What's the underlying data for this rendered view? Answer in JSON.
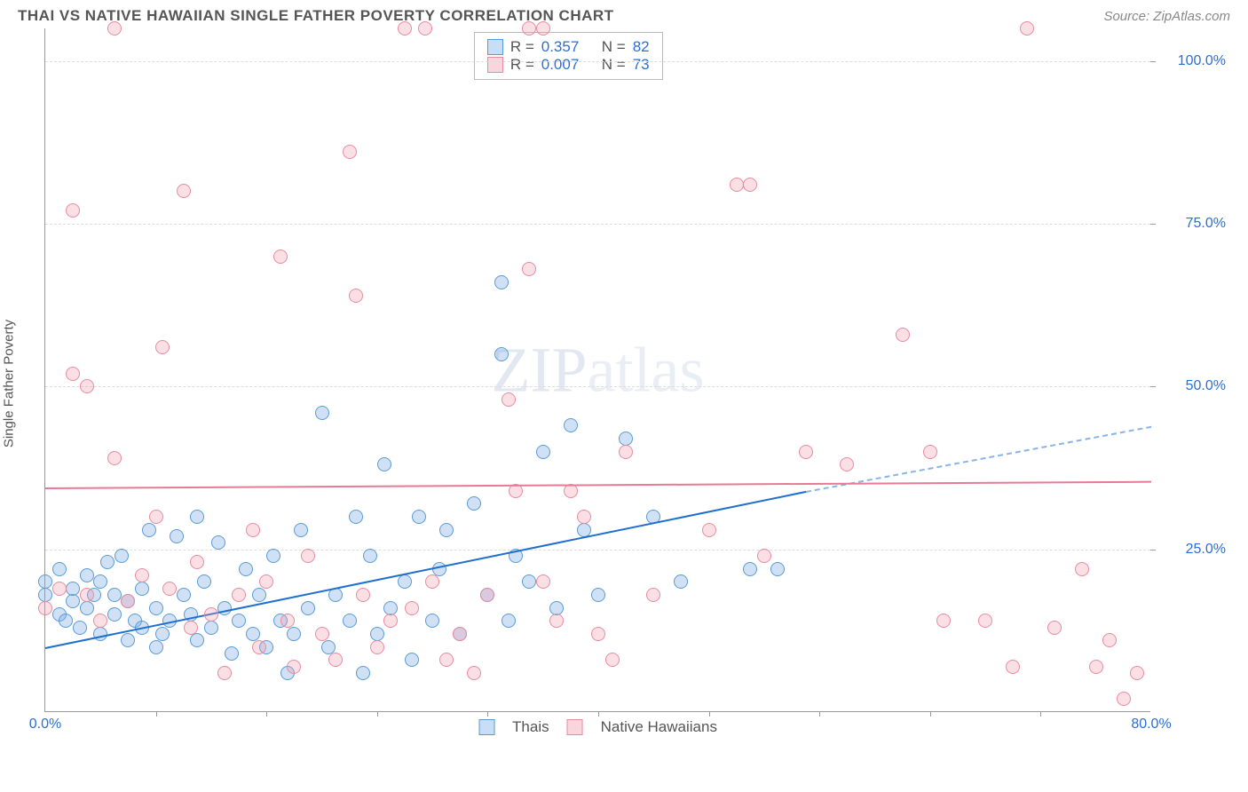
{
  "header": {
    "title": "THAI VS NATIVE HAWAIIAN SINGLE FATHER POVERTY CORRELATION CHART",
    "source": "Source: ZipAtlas.com"
  },
  "ylabel": "Single Father Poverty",
  "watermark": {
    "bold": "ZIP",
    "light": "atlas"
  },
  "axes": {
    "xlim": [
      0,
      80
    ],
    "ylim": [
      0,
      105
    ],
    "xticks_major": [
      0,
      80
    ],
    "xticks_minor": [
      8,
      16,
      24,
      32,
      40,
      48,
      56,
      64,
      72
    ],
    "xtick_labels": {
      "0": "0.0%",
      "80": "80.0%"
    },
    "yticks": [
      25,
      50,
      75,
      100
    ],
    "ytick_labels": {
      "25": "25.0%",
      "50": "50.0%",
      "75": "75.0%",
      "100": "100.0%"
    },
    "grid_color": "#dddddd",
    "axis_color": "#999999"
  },
  "series": [
    {
      "name": "Thais",
      "color_fill": "rgba(120,170,230,0.35)",
      "color_stroke": "#5a9bd5",
      "trend_color": "#1f6fd0",
      "R": "0.357",
      "N": "82",
      "trend": {
        "x1": 0,
        "y1": 10,
        "x2_solid": 55,
        "y2_solid": 34,
        "x2_dash": 80,
        "y2_dash": 44
      },
      "points": [
        [
          0,
          18
        ],
        [
          0,
          20
        ],
        [
          1,
          15
        ],
        [
          1,
          22
        ],
        [
          1.5,
          14
        ],
        [
          2,
          17
        ],
        [
          2,
          19
        ],
        [
          2.5,
          13
        ],
        [
          3,
          16
        ],
        [
          3,
          21
        ],
        [
          3.5,
          18
        ],
        [
          4,
          12
        ],
        [
          4,
          20
        ],
        [
          4.5,
          23
        ],
        [
          5,
          15
        ],
        [
          5,
          18
        ],
        [
          5.5,
          24
        ],
        [
          6,
          11
        ],
        [
          6,
          17
        ],
        [
          6.5,
          14
        ],
        [
          7,
          19
        ],
        [
          7,
          13
        ],
        [
          7.5,
          28
        ],
        [
          8,
          10
        ],
        [
          8,
          16
        ],
        [
          8.5,
          12
        ],
        [
          9,
          14
        ],
        [
          9.5,
          27
        ],
        [
          10,
          18
        ],
        [
          10.5,
          15
        ],
        [
          11,
          30
        ],
        [
          11,
          11
        ],
        [
          11.5,
          20
        ],
        [
          12,
          13
        ],
        [
          12.5,
          26
        ],
        [
          13,
          16
        ],
        [
          13.5,
          9
        ],
        [
          14,
          14
        ],
        [
          14.5,
          22
        ],
        [
          15,
          12
        ],
        [
          15.5,
          18
        ],
        [
          16,
          10
        ],
        [
          16.5,
          24
        ],
        [
          17,
          14
        ],
        [
          17.5,
          6
        ],
        [
          18,
          12
        ],
        [
          18.5,
          28
        ],
        [
          19,
          16
        ],
        [
          20,
          46
        ],
        [
          20.5,
          10
        ],
        [
          21,
          18
        ],
        [
          22,
          14
        ],
        [
          22.5,
          30
        ],
        [
          23,
          6
        ],
        [
          23.5,
          24
        ],
        [
          24,
          12
        ],
        [
          24.5,
          38
        ],
        [
          25,
          16
        ],
        [
          26,
          20
        ],
        [
          26.5,
          8
        ],
        [
          27,
          30
        ],
        [
          28,
          14
        ],
        [
          28.5,
          22
        ],
        [
          29,
          28
        ],
        [
          30,
          12
        ],
        [
          31,
          32
        ],
        [
          32,
          18
        ],
        [
          33,
          55
        ],
        [
          33,
          66
        ],
        [
          33.5,
          14
        ],
        [
          34,
          24
        ],
        [
          35,
          20
        ],
        [
          36,
          40
        ],
        [
          37,
          16
        ],
        [
          38,
          44
        ],
        [
          39,
          28
        ],
        [
          40,
          18
        ],
        [
          42,
          42
        ],
        [
          44,
          30
        ],
        [
          46,
          20
        ],
        [
          51,
          22
        ],
        [
          53,
          22
        ]
      ]
    },
    {
      "name": "Native Hawaiians",
      "color_fill": "rgba(240,150,170,0.30)",
      "color_stroke": "#e88ba0",
      "trend_color": "#e77a95",
      "R": "0.007",
      "N": "73",
      "trend": {
        "x1": 0,
        "y1": 34.5,
        "x2_solid": 80,
        "y2_solid": 35.5,
        "x2_dash": 80,
        "y2_dash": 35.5
      },
      "points": [
        [
          0,
          16
        ],
        [
          1,
          19
        ],
        [
          2,
          52
        ],
        [
          2,
          77
        ],
        [
          3,
          18
        ],
        [
          3,
          50
        ],
        [
          4,
          14
        ],
        [
          5,
          105
        ],
        [
          5,
          39
        ],
        [
          6,
          17
        ],
        [
          7,
          21
        ],
        [
          8,
          30
        ],
        [
          8.5,
          56
        ],
        [
          9,
          19
        ],
        [
          10,
          80
        ],
        [
          10.5,
          13
        ],
        [
          11,
          23
        ],
        [
          12,
          15
        ],
        [
          13,
          6
        ],
        [
          14,
          18
        ],
        [
          15,
          28
        ],
        [
          15.5,
          10
        ],
        [
          16,
          20
        ],
        [
          17,
          70
        ],
        [
          17.5,
          14
        ],
        [
          18,
          7
        ],
        [
          19,
          24
        ],
        [
          20,
          12
        ],
        [
          21,
          8
        ],
        [
          22,
          86
        ],
        [
          22.5,
          64
        ],
        [
          23,
          18
        ],
        [
          24,
          10
        ],
        [
          25,
          14
        ],
        [
          26,
          105
        ],
        [
          26.5,
          16
        ],
        [
          27.5,
          105
        ],
        [
          28,
          20
        ],
        [
          29,
          8
        ],
        [
          30,
          12
        ],
        [
          31,
          6
        ],
        [
          32,
          18
        ],
        [
          33.5,
          48
        ],
        [
          34,
          34
        ],
        [
          35,
          68
        ],
        [
          35,
          105
        ],
        [
          36,
          105
        ],
        [
          36,
          20
        ],
        [
          37,
          14
        ],
        [
          38,
          34
        ],
        [
          39,
          30
        ],
        [
          40,
          12
        ],
        [
          41,
          8
        ],
        [
          42,
          40
        ],
        [
          44,
          18
        ],
        [
          48,
          28
        ],
        [
          50,
          81
        ],
        [
          51,
          81
        ],
        [
          52,
          24
        ],
        [
          55,
          40
        ],
        [
          58,
          38
        ],
        [
          62,
          58
        ],
        [
          64,
          40
        ],
        [
          65,
          14
        ],
        [
          68,
          14
        ],
        [
          70,
          7
        ],
        [
          71,
          105
        ],
        [
          73,
          13
        ],
        [
          75,
          22
        ],
        [
          76,
          7
        ],
        [
          77,
          11
        ],
        [
          78,
          2
        ],
        [
          79,
          6
        ]
      ]
    }
  ],
  "stat_box": {
    "labels": {
      "R": "R =",
      "N": "N ="
    }
  },
  "legend": {
    "items": [
      "Thais",
      "Native Hawaiians"
    ]
  },
  "style": {
    "background": "#ffffff",
    "title_fontsize": 17,
    "label_fontsize": 15,
    "tick_fontsize": 16,
    "tick_color": "#2a6fd6",
    "point_diameter": 16
  }
}
